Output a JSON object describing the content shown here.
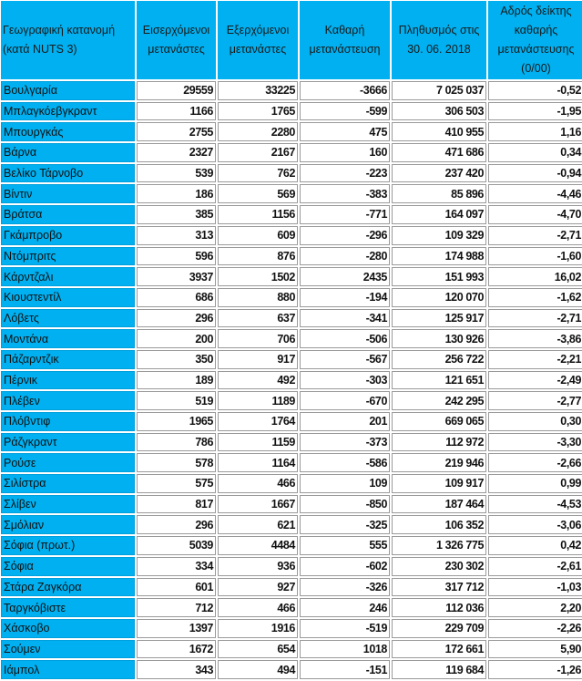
{
  "headers": [
    "Γεωγραφική κατανομή (κατά NUTS 3)",
    "Εισερχόμενοι μετανάστες",
    "Εξερχόμενοι μετανάστες",
    "Καθαρή μετανάστευση",
    "Πληθυσμός στις 30. 06. 2018",
    "Αδρός δείκτης καθαρής μετανάστευσης (0/00)"
  ],
  "header_color": "#00b0f0",
  "rows": [
    [
      "Βουλγαρία",
      "29559",
      "33225",
      "-3666",
      "7 025 037",
      "-0,52"
    ],
    [
      "Μπλαγκόεβγκραντ",
      "1166",
      "1765",
      "-599",
      "306 503",
      "-1,95"
    ],
    [
      "Μπουργκάς",
      "2755",
      "2280",
      "475",
      "410 955",
      "1,16"
    ],
    [
      "Βάρνα",
      "2327",
      "2167",
      "160",
      "471 686",
      "0,34"
    ],
    [
      "Βελίκο Τάρνοβο",
      "539",
      "762",
      "-223",
      "237 420",
      "-0,94"
    ],
    [
      "Βίντιν",
      "186",
      "569",
      "-383",
      "85 896",
      "-4,46"
    ],
    [
      "Βράτσα",
      "385",
      "1156",
      "-771",
      "164 097",
      "-4,70"
    ],
    [
      "Γκάμπροβο",
      "313",
      "609",
      "-296",
      "109 329",
      "-2,71"
    ],
    [
      "Ντόμπριτς",
      "596",
      "876",
      "-280",
      "174 988",
      "-1,60"
    ],
    [
      "Κάρντζαλι",
      "3937",
      "1502",
      "2435",
      "151 993",
      "16,02"
    ],
    [
      "Κιουστεντίλ",
      "686",
      "880",
      "-194",
      "120 070",
      "-1,62"
    ],
    [
      "Λόβετς",
      "296",
      "637",
      "-341",
      "125 917",
      "-2,71"
    ],
    [
      "Μοντάνα",
      "200",
      "706",
      "-506",
      "130 926",
      "-3,86"
    ],
    [
      "Πάζαρντζικ",
      "350",
      "917",
      "-567",
      "256 722",
      "-2,21"
    ],
    [
      "Πέρνικ",
      "189",
      "492",
      "-303",
      "121 651",
      "-2,49"
    ],
    [
      "Πλέβεν",
      "519",
      "1189",
      "-670",
      "242 295",
      "-2,77"
    ],
    [
      "Πλόβντιφ",
      "1965",
      "1764",
      "201",
      "669 065",
      "0,30"
    ],
    [
      "Ράζγκραντ",
      "786",
      "1159",
      "-373",
      "112 972",
      "-3,30"
    ],
    [
      "Ρούσε",
      "578",
      "1164",
      "-586",
      "219 946",
      "-2,66"
    ],
    [
      "Σιλίστρα",
      "575",
      "466",
      "109",
      "109 917",
      "0,99"
    ],
    [
      "Σλίβεν",
      "817",
      "1667",
      "-850",
      "187 464",
      "-4,53"
    ],
    [
      "Σμόλιαν",
      "296",
      "621",
      "-325",
      "106 352",
      "-3,06"
    ],
    [
      "Σόφια (πρωτ.)",
      "5039",
      "4484",
      "555",
      "1 326 775",
      "0,42"
    ],
    [
      "Σόφια",
      "334",
      "936",
      "-602",
      "230 302",
      "-2,61"
    ],
    [
      "Στάρα Ζαγκόρα",
      "601",
      "927",
      "-326",
      "317 712",
      "-1,03"
    ],
    [
      "Ταργκόβιστε",
      "712",
      "466",
      "246",
      "112 036",
      "2,20"
    ],
    [
      "Χάσκοβο",
      "1397",
      "1916",
      "-519",
      "229 709",
      "-2,26"
    ],
    [
      "Σούμεν",
      "1672",
      "654",
      "1018",
      "172 661",
      "5,90"
    ],
    [
      "Ιάμπολ",
      "343",
      "494",
      "-151",
      "119 684",
      "-1,26"
    ]
  ]
}
